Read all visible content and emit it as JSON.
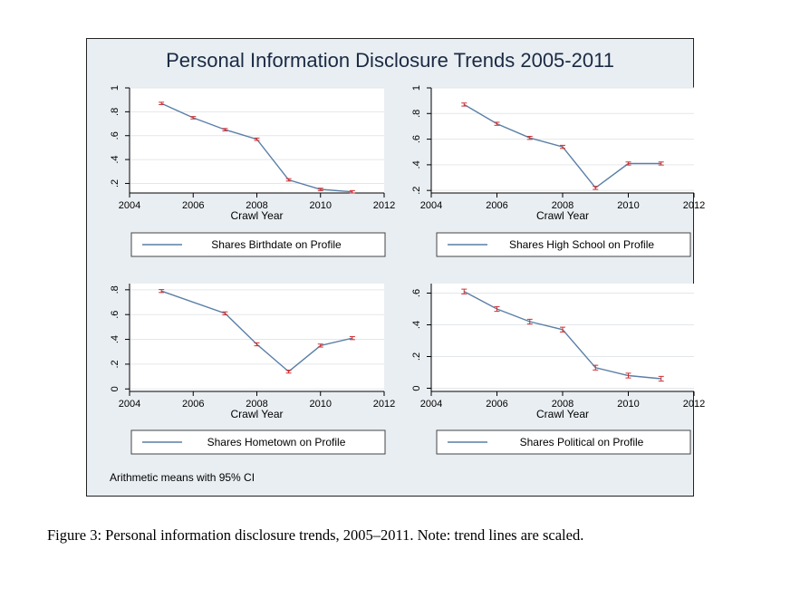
{
  "figure": {
    "title": "Personal Information Disclosure Trends 2005-2011",
    "footnote": "Arithmetic means with 95% CI",
    "caption": "Figure 3:  Personal information disclosure trends, 2005–2011.  Note:  trend lines are scaled."
  },
  "colors": {
    "line": "#5a7fa6",
    "ci": "#d03030",
    "panel": "#ffffff",
    "background": "#e9eef2",
    "grid": "#e3e7ea"
  },
  "chart_data": [
    {
      "type": "line",
      "xlabel": "Crawl Year",
      "xlim": [
        2004,
        2012
      ],
      "xticks": [
        2004,
        2006,
        2008,
        2010,
        2012
      ],
      "ylim": [
        0.12,
        1.0
      ],
      "yticks": [
        0.2,
        0.4,
        0.6,
        0.8,
        1.0
      ],
      "ytick_labels": [
        ".2",
        ".4",
        ".6",
        ".8",
        "1"
      ],
      "legend": "Shares Birthdate on Profile",
      "series": [
        {
          "x": [
            2005,
            2006,
            2007,
            2008,
            2009,
            2010,
            2011
          ],
          "y": [
            0.87,
            0.75,
            0.65,
            0.57,
            0.23,
            0.15,
            0.13
          ],
          "ci": 0.01
        }
      ]
    },
    {
      "type": "line",
      "xlabel": "Crawl Year",
      "xlim": [
        2004,
        2012
      ],
      "xticks": [
        2004,
        2006,
        2008,
        2010,
        2012
      ],
      "ylim": [
        0.18,
        1.0
      ],
      "yticks": [
        0.2,
        0.4,
        0.6,
        0.8,
        1.0
      ],
      "ytick_labels": [
        ".2",
        ".4",
        ".6",
        ".8",
        "1"
      ],
      "legend": "Shares High School on Profile",
      "series": [
        {
          "x": [
            2005,
            2006,
            2007,
            2008,
            2009,
            2010,
            2011
          ],
          "y": [
            0.87,
            0.72,
            0.61,
            0.54,
            0.22,
            0.41,
            0.41
          ],
          "ci": 0.012
        }
      ]
    },
    {
      "type": "line",
      "xlabel": "Crawl Year",
      "xlim": [
        2004,
        2012
      ],
      "xticks": [
        2004,
        2006,
        2008,
        2010,
        2012
      ],
      "ylim": [
        -0.02,
        0.85
      ],
      "yticks": [
        0,
        0.2,
        0.4,
        0.6,
        0.8
      ],
      "ytick_labels": [
        "0",
        ".2",
        ".4",
        ".6",
        ".8"
      ],
      "legend": "Shares Hometown on Profile",
      "series": [
        {
          "x": [
            2005,
            2007,
            2008,
            2009,
            2010,
            2011
          ],
          "y": [
            0.79,
            0.61,
            0.36,
            0.14,
            0.35,
            0.41
          ],
          "ci": 0.012
        }
      ]
    },
    {
      "type": "line",
      "xlabel": "Crawl Year",
      "xlim": [
        2004,
        2012
      ],
      "xticks": [
        2004,
        2006,
        2008,
        2010,
        2012
      ],
      "ylim": [
        -0.02,
        0.66
      ],
      "yticks": [
        0,
        0.2,
        0.4,
        0.6
      ],
      "ytick_labels": [
        "0",
        ".2",
        ".4",
        ".6"
      ],
      "legend": "Shares Political on Profile",
      "series": [
        {
          "x": [
            2005,
            2006,
            2007,
            2008,
            2009,
            2010,
            2011
          ],
          "y": [
            0.61,
            0.5,
            0.42,
            0.37,
            0.13,
            0.08,
            0.06
          ],
          "ci": 0.015
        }
      ]
    }
  ]
}
